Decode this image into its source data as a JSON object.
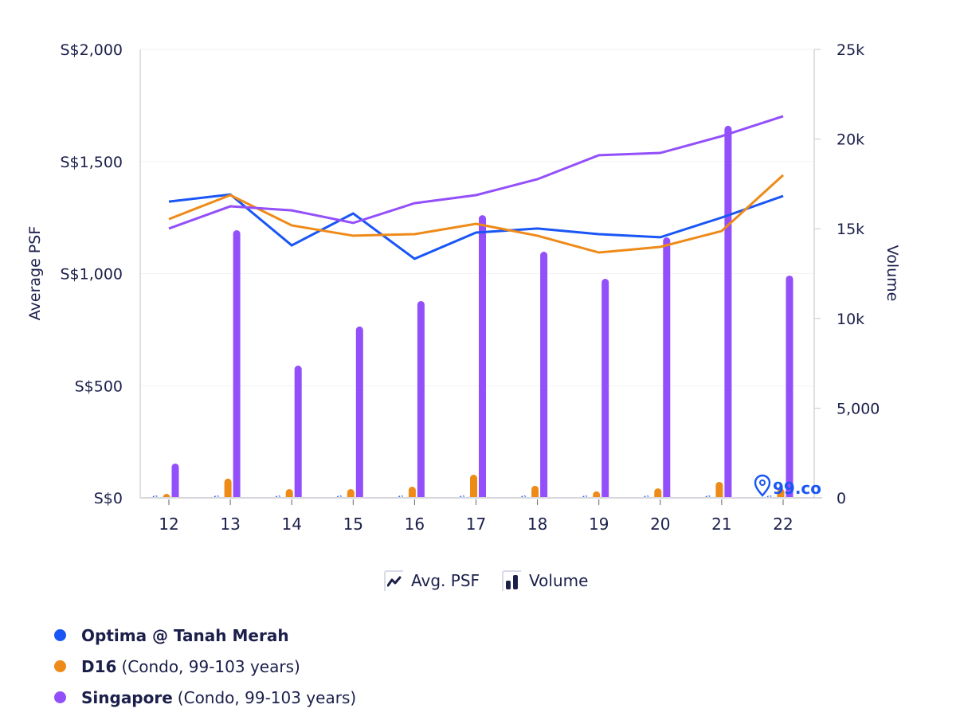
{
  "chart_data": {
    "type": "bar+line",
    "title": "",
    "xlabel": "",
    "ylabel": "Average PSF",
    "y2label": "Volume",
    "categories": [
      "12",
      "13",
      "14",
      "15",
      "16",
      "17",
      "18",
      "19",
      "20",
      "21",
      "22"
    ],
    "ylim": [
      0,
      2000
    ],
    "y2lim": [
      0,
      25000
    ],
    "yticks": [
      {
        "value": 0,
        "label": "S$0"
      },
      {
        "value": 500,
        "label": "S$500"
      },
      {
        "value": 1000,
        "label": "S$1,000"
      },
      {
        "value": 1500,
        "label": "S$1,500"
      },
      {
        "value": 2000,
        "label": "S$2,000"
      }
    ],
    "y2ticks": [
      {
        "value": 0,
        "label": "0"
      },
      {
        "value": 5000,
        "label": "5,000"
      },
      {
        "value": 10000,
        "label": "10k"
      },
      {
        "value": 15000,
        "label": "15k"
      },
      {
        "value": 20000,
        "label": "20k"
      },
      {
        "value": 25000,
        "label": "25k"
      }
    ],
    "grid": true,
    "series": [
      {
        "name": "Optima @ Tanah Merah",
        "detail": "",
        "color": "#1a56f5",
        "kind": "line",
        "axis": "left",
        "values": [
          1321,
          1353,
          1126,
          1268,
          1066,
          1183,
          1201,
          1176,
          1162,
          1250,
          1346
        ]
      },
      {
        "name": "D16",
        "detail": "(Condo, 99-103 years)",
        "color": "#ee8a18",
        "kind": "line",
        "axis": "left",
        "values": [
          1243,
          1350,
          1215,
          1169,
          1176,
          1222,
          1169,
          1094,
          1119,
          1190,
          1439
        ]
      },
      {
        "name": "Singapore",
        "detail": "(Condo, 99-103 years)",
        "color": "#924ffa",
        "kind": "line",
        "axis": "left",
        "values": [
          1201,
          1300,
          1282,
          1226,
          1314,
          1350,
          1421,
          1528,
          1538,
          1613,
          1702
        ]
      },
      {
        "name": "Optima @ Tanah Merah Volume",
        "color": "#1a56f5",
        "kind": "bar",
        "axis": "right",
        "values": [
          0,
          0,
          0,
          0,
          0,
          0,
          0,
          0,
          0,
          0,
          0
        ]
      },
      {
        "name": "D16 Volume",
        "color": "#ee8a18",
        "kind": "bar",
        "axis": "right",
        "values": [
          220,
          1070,
          490,
          490,
          620,
          1290,
          670,
          360,
          530,
          890,
          530
        ]
      },
      {
        "name": "Singapore Volume",
        "color": "#924ffa",
        "kind": "bar",
        "axis": "right",
        "values": [
          1910,
          14920,
          7370,
          9550,
          10970,
          15760,
          13720,
          12210,
          14520,
          20740,
          12390
        ]
      }
    ],
    "legend_position": "bottom-left"
  },
  "toggles": [
    {
      "label": "Avg. PSF",
      "icon": "line-chart-icon"
    },
    {
      "label": "Volume",
      "icon": "bar-chart-icon"
    }
  ],
  "watermark": "99.co",
  "legend": [
    {
      "name": "Optima @ Tanah Merah",
      "detail": "",
      "color": "#1a56f5"
    },
    {
      "name": "D16",
      "detail": "(Condo, 99-103 years)",
      "color": "#ee8a18"
    },
    {
      "name": "Singapore",
      "detail": "(Condo, 99-103 years)",
      "color": "#924ffa"
    }
  ]
}
